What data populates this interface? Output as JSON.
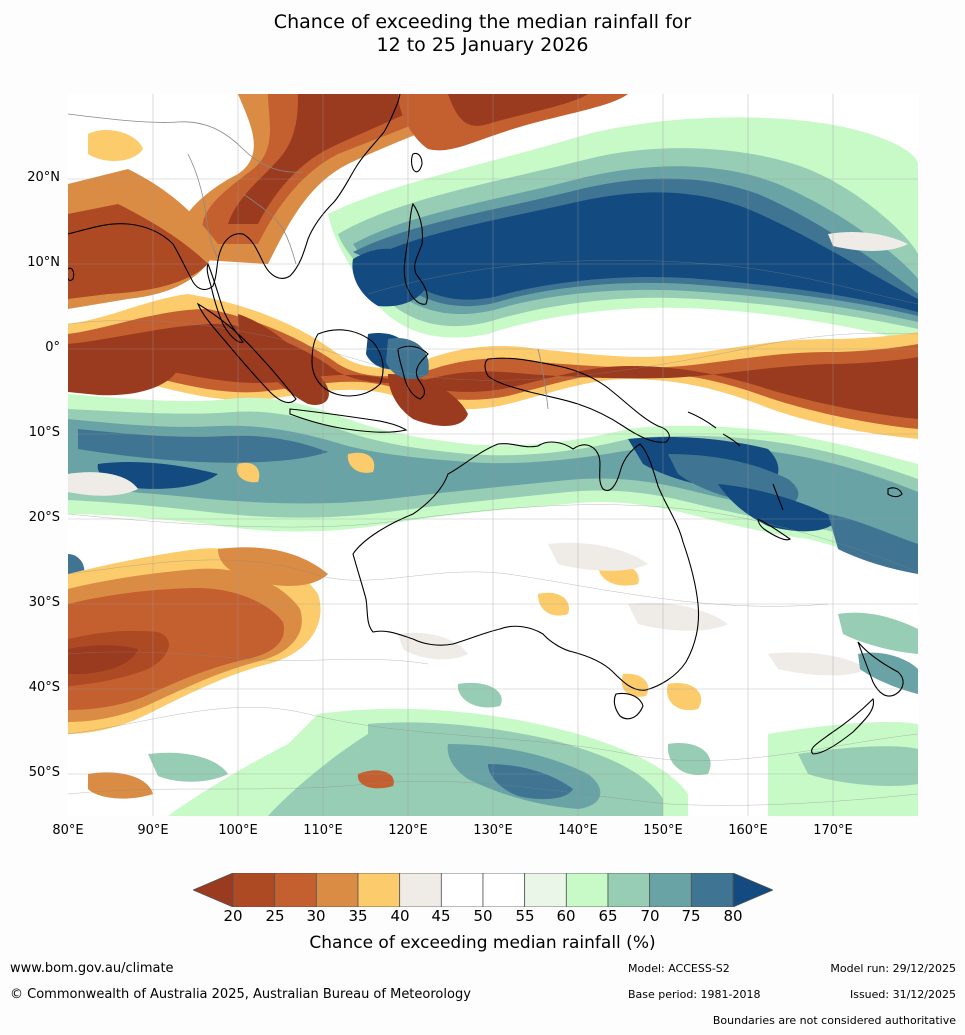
{
  "title": {
    "line1": "Chance of exceeding the median rainfall for",
    "line2": "12 to 25 January 2026"
  },
  "map": {
    "lon_range": [
      80,
      180
    ],
    "lat_range": [
      -55,
      30
    ],
    "lat_labels": [
      "20°N",
      "10°N",
      "0°",
      "10°S",
      "20°S",
      "30°S",
      "40°S",
      "50°S"
    ],
    "lon_labels": [
      "80°E",
      "90°E",
      "100°E",
      "110°E",
      "120°E",
      "130°E",
      "140°E",
      "150°E",
      "160°E",
      "170°E"
    ]
  },
  "legend": {
    "ticks": [
      "20",
      "25",
      "30",
      "35",
      "40",
      "45",
      "50",
      "55",
      "60",
      "65",
      "70",
      "75",
      "80"
    ],
    "colors": [
      "#9a3a1e",
      "#ad4a24",
      "#c4602f",
      "#db8c44",
      "#fccb6c",
      "#efebe7",
      "#ffffff",
      "#ffffff",
      "#e9f6e8",
      "#c8fac8",
      "#97cdb4",
      "#6aa3a5",
      "#3f7493",
      "#134a7f"
    ],
    "title": "Chance of exceeding median rainfall (%)"
  },
  "footer": {
    "website": "www.bom.gov.au/climate",
    "copyright": "© Commonwealth of Australia 2025, Australian Bureau of Meteorology",
    "model": "Model: ACCESS-S2",
    "base_period": "Base period: 1981-2018",
    "model_run": "Model run: 29/12/2025",
    "issued": "Issued: 31/12/2025",
    "disclaimer": "Boundaries are not considered authoritative"
  }
}
